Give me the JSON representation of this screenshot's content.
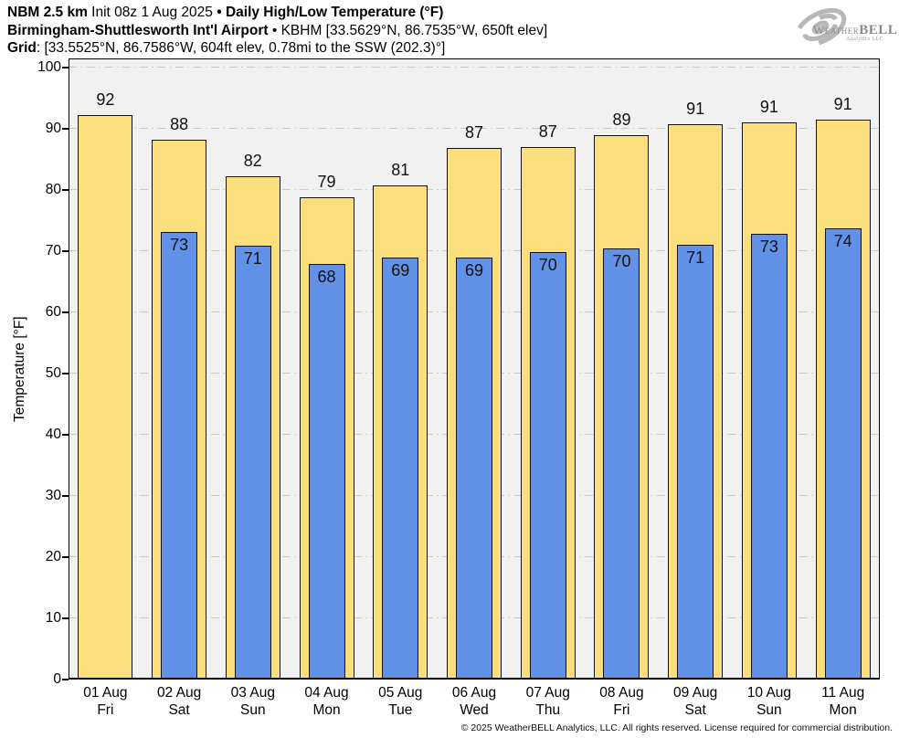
{
  "header": {
    "line1_bold1": "NBM 2.5 km",
    "line1_reg1": " Init 08z 1 Aug 2025 ",
    "line1_bold2": "• Daily High/Low Temperature (°F)",
    "line2_bold": "Birmingham-Shuttlesworth Int'l Airport",
    "line2_reg": " • KBHM [33.5629°N, 86.7535°W, 650ft elev]",
    "line3_bold": "Grid",
    "line3_reg": ": [33.5525°N, 86.7586°W, 604ft elev, 0.78mi to the SSW (202.3)°]"
  },
  "logo": {
    "part1": "Weather",
    "part2": "BELL",
    "subtitle": "Analytics LLC"
  },
  "chart_data": {
    "type": "bar",
    "title": "Daily High/Low Temperature (°F)",
    "ylabel": "Temperature [°F]",
    "ylim": [
      0,
      100
    ],
    "yticks": [
      0,
      10,
      20,
      30,
      40,
      50,
      60,
      70,
      80,
      90,
      100
    ],
    "grid": true,
    "legend_position": "none",
    "categories": [
      "01 Aug",
      "02 Aug",
      "03 Aug",
      "04 Aug",
      "05 Aug",
      "06 Aug",
      "07 Aug",
      "08 Aug",
      "09 Aug",
      "10 Aug",
      "11 Aug"
    ],
    "weekdays": [
      "Fri",
      "Sat",
      "Sun",
      "Mon",
      "Tue",
      "Wed",
      "Thu",
      "Fri",
      "Sat",
      "Sun",
      "Mon"
    ],
    "series": [
      {
        "name": "High",
        "color": "#FBDF7D",
        "values": [
          92,
          88,
          82,
          79,
          81,
          87,
          87,
          89,
          91,
          91,
          91
        ],
        "plotted": [
          92.3,
          88.2,
          82.3,
          78.8,
          80.7,
          86.8,
          87.0,
          89.0,
          90.7,
          91.0,
          91.5
        ]
      },
      {
        "name": "Low",
        "color": "#6291E8",
        "values": [
          null,
          73,
          71,
          68,
          69,
          69,
          70,
          70,
          71,
          73,
          74
        ],
        "plotted": [
          null,
          73.2,
          70.9,
          67.9,
          68.9,
          69.0,
          69.8,
          70.4,
          71.1,
          72.9,
          73.8
        ]
      }
    ]
  },
  "footer": {
    "copyright": "© 2025 WeatherBELL Analytics, LLC. All rights reserved. License required for commercial distribution."
  }
}
